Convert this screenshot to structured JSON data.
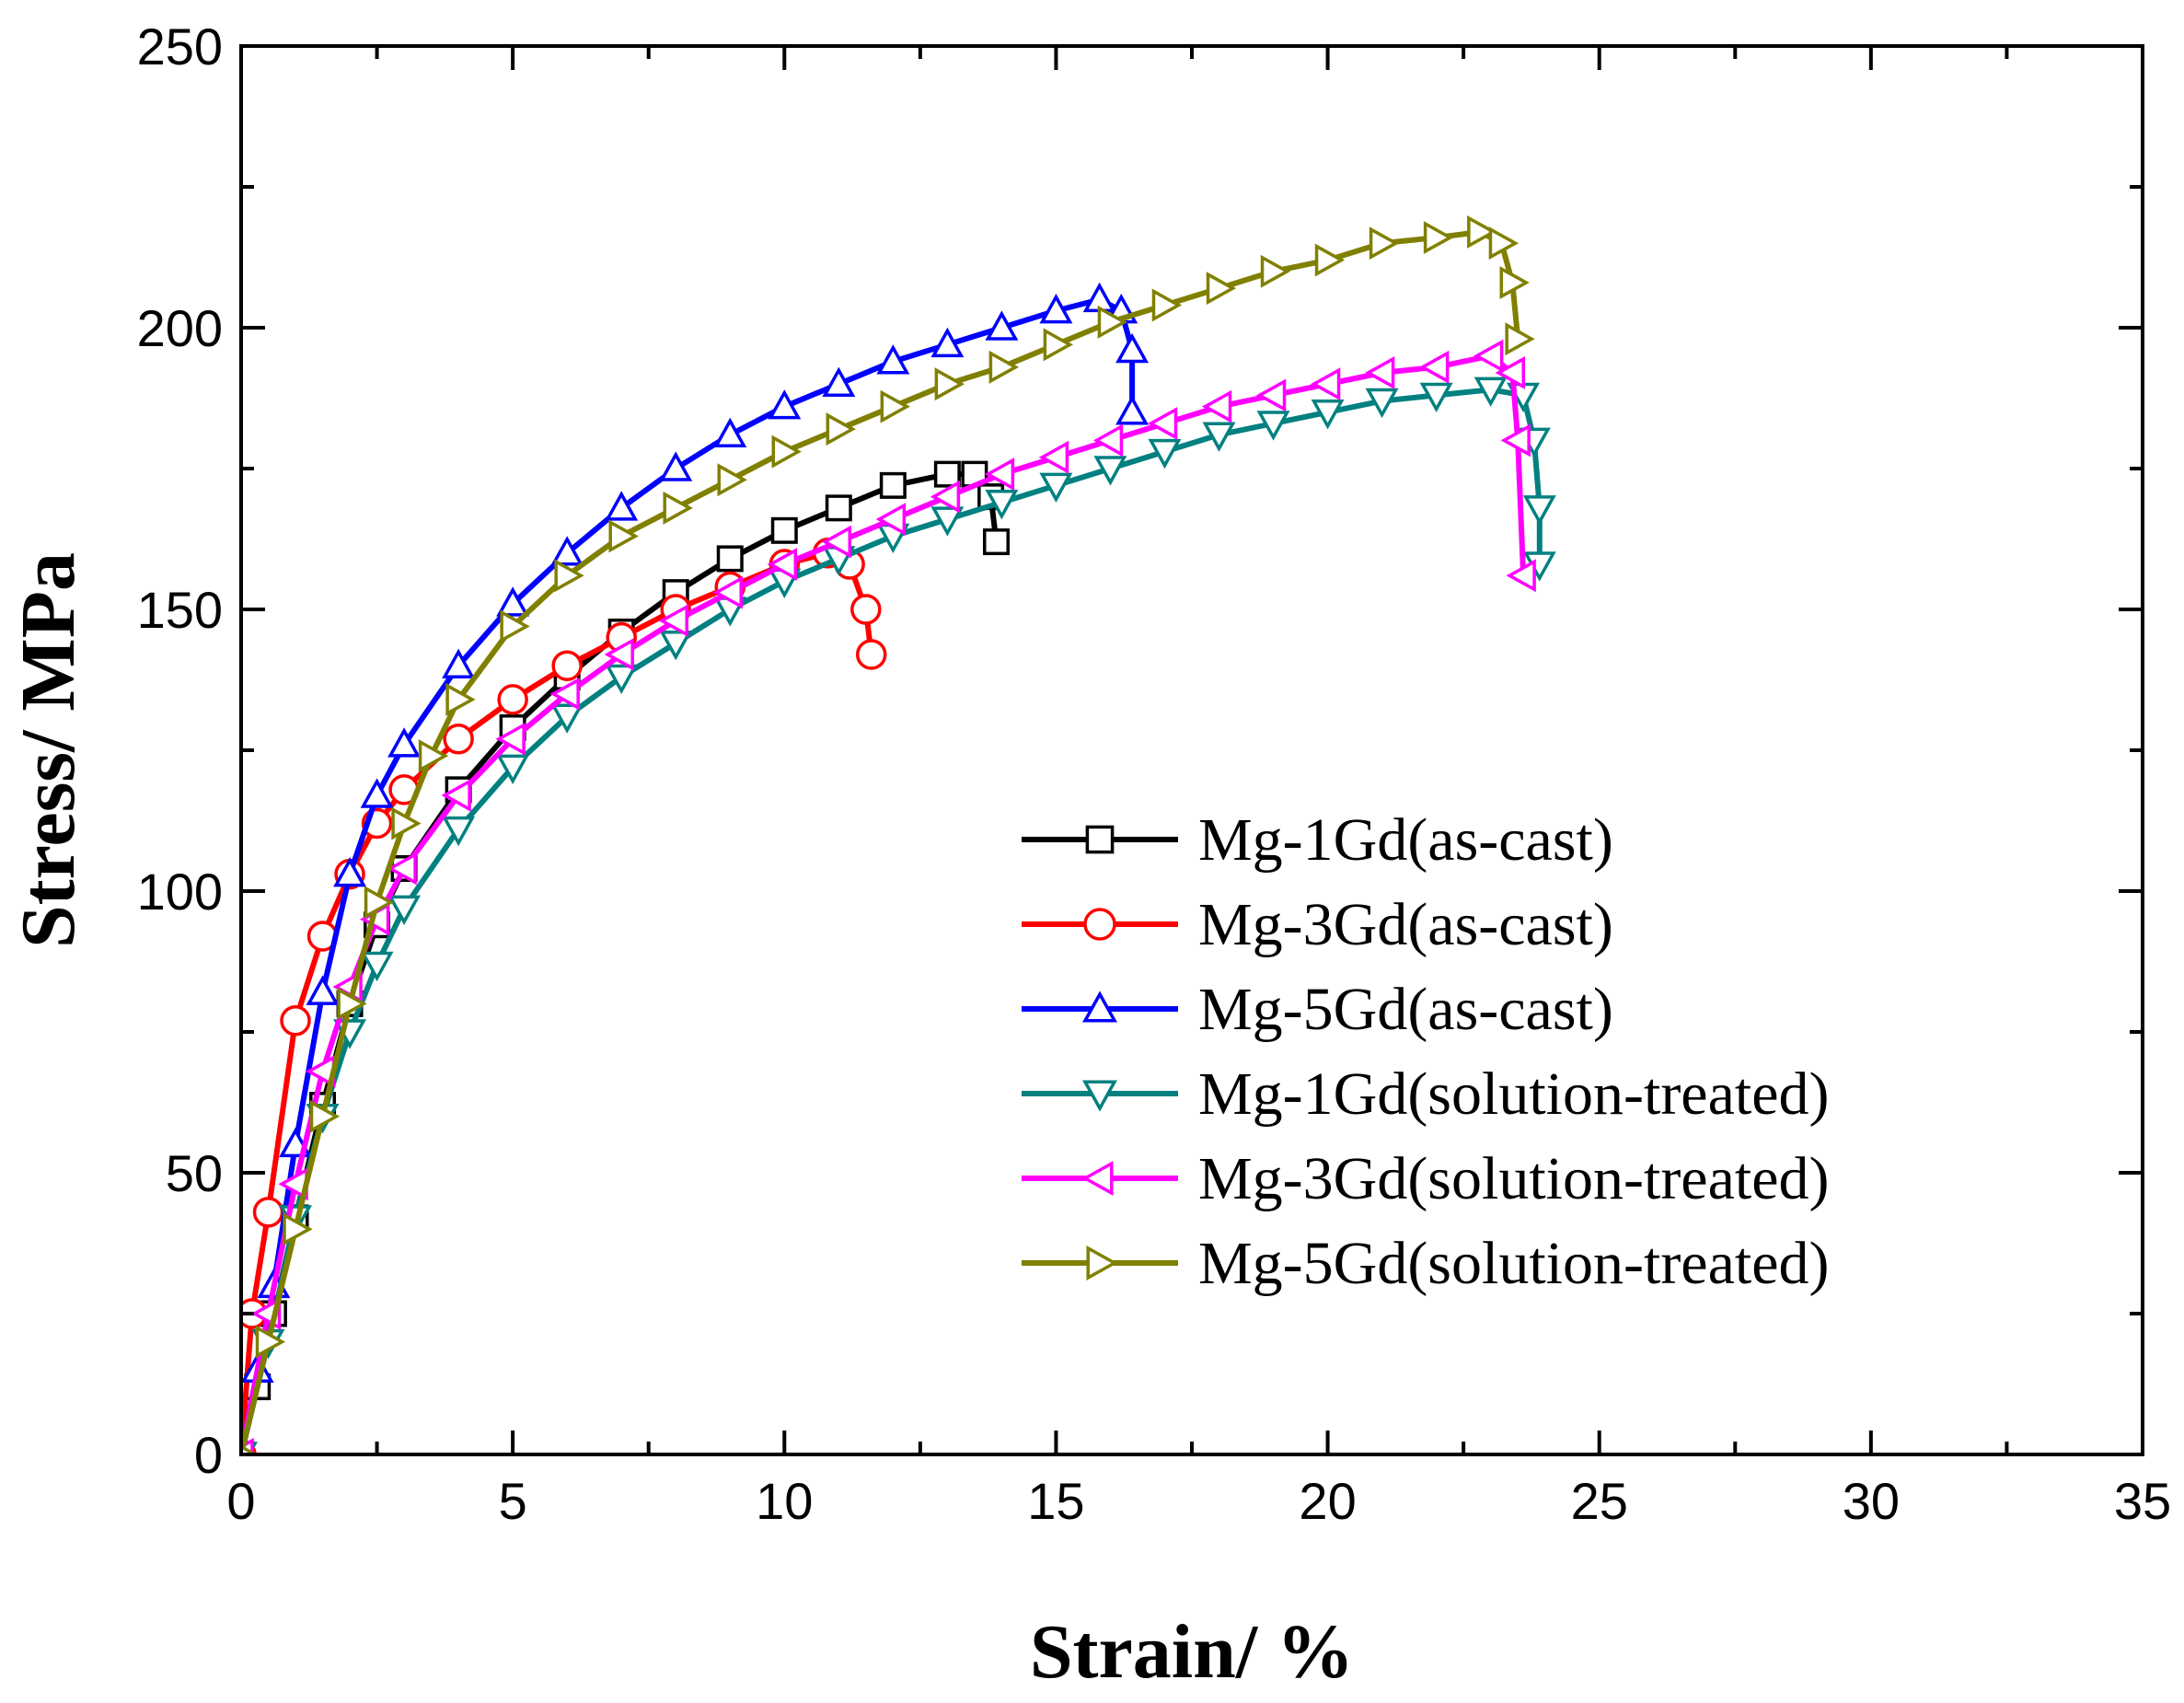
{
  "chart_data": {
    "type": "line",
    "title": "",
    "xlabel": "Strain/ %",
    "ylabel": "Stress/ MPa",
    "xlim": [
      0,
      35
    ],
    "ylim": [
      0,
      250
    ],
    "x_ticks": [
      "0",
      "5",
      "10",
      "15",
      "20",
      "25",
      "30",
      "35"
    ],
    "y_ticks": [
      "0",
      "50",
      "100",
      "150",
      "200",
      "250"
    ],
    "legend_position": "center-right",
    "series": [
      {
        "name": "Mg-1Gd(as-cast)",
        "color": "#000000",
        "marker": "square",
        "x": [
          0,
          0.3,
          0.6,
          1.0,
          1.5,
          2.0,
          2.5,
          3.0,
          4.0,
          5.0,
          6.0,
          7.0,
          8.0,
          9.0,
          10.0,
          11.0,
          12.0,
          13.0,
          13.5,
          13.8,
          13.9
        ],
        "y": [
          0,
          12,
          25,
          42,
          62,
          80,
          94,
          104,
          118,
          129,
          138,
          146,
          153,
          159,
          164,
          168,
          172,
          174,
          174,
          170,
          162
        ]
      },
      {
        "name": "Mg-3Gd(as-cast)",
        "color": "#ff0000",
        "marker": "circle",
        "x": [
          0,
          0.2,
          0.5,
          1.0,
          1.5,
          2.0,
          2.5,
          3.0,
          4.0,
          5.0,
          6.0,
          7.0,
          8.0,
          9.0,
          10.0,
          10.8,
          11.2,
          11.5,
          11.6
        ],
        "y": [
          0,
          25,
          43,
          77,
          92,
          103,
          112,
          118,
          127,
          134,
          140,
          145,
          150,
          154,
          158,
          160,
          158,
          150,
          142
        ]
      },
      {
        "name": "Mg-5Gd(as-cast)",
        "color": "#0000ff",
        "marker": "triangle-up",
        "x": [
          0,
          0.3,
          0.6,
          1.0,
          1.5,
          2.0,
          2.5,
          3.0,
          4.0,
          5.0,
          6.0,
          7.0,
          8.0,
          9.0,
          10.0,
          11.0,
          12.0,
          13.0,
          14.0,
          15.0,
          15.8,
          16.2,
          16.4,
          16.4
        ],
        "y": [
          0,
          15,
          30,
          55,
          82,
          103,
          117,
          126,
          140,
          151,
          160,
          168,
          175,
          181,
          186,
          190,
          194,
          197,
          200,
          203,
          205,
          203,
          196,
          185
        ]
      },
      {
        "name": "Mg-1Gd(solution-treated)",
        "color": "#008080",
        "marker": "triangle-down",
        "x": [
          0,
          0.5,
          1.0,
          1.5,
          2.0,
          2.5,
          3.0,
          4.0,
          5.0,
          6.0,
          7.0,
          8.0,
          9.0,
          10.0,
          11.0,
          12.0,
          13.0,
          14.0,
          15.0,
          16.0,
          17.0,
          18.0,
          19.0,
          20.0,
          21.0,
          22.0,
          23.0,
          23.6,
          23.8,
          23.9,
          23.9
        ],
        "y": [
          0,
          20,
          42,
          60,
          75,
          87,
          97,
          111,
          122,
          131,
          138,
          144,
          150,
          155,
          159,
          163,
          166,
          169,
          172,
          175,
          178,
          181,
          183,
          185,
          187,
          188,
          189,
          188,
          180,
          168,
          158
        ]
      },
      {
        "name": "Mg-3Gd(solution-treated)",
        "color": "#ff00ff",
        "marker": "triangle-left",
        "x": [
          0,
          0.5,
          1.0,
          1.5,
          2.0,
          2.5,
          3.0,
          4.0,
          5.0,
          6.0,
          7.0,
          8.0,
          9.0,
          10.0,
          11.0,
          12.0,
          13.0,
          14.0,
          15.0,
          16.0,
          17.0,
          18.0,
          19.0,
          20.0,
          21.0,
          22.0,
          23.0,
          23.4,
          23.5,
          23.6
        ],
        "y": [
          0,
          25,
          48,
          68,
          83,
          95,
          104,
          117,
          127,
          135,
          142,
          148,
          153,
          158,
          162,
          166,
          170,
          174,
          177,
          180,
          183,
          186,
          188,
          190,
          192,
          193,
          195,
          192,
          180,
          156
        ]
      },
      {
        "name": "Mg-5Gd(solution-treated)",
        "color": "#808000",
        "marker": "triangle-right",
        "x": [
          0,
          0.5,
          1.0,
          1.5,
          2.0,
          2.5,
          3.0,
          3.5,
          4.0,
          5.0,
          6.0,
          7.0,
          8.0,
          9.0,
          10.0,
          11.0,
          12.0,
          13.0,
          14.0,
          15.0,
          16.0,
          17.0,
          18.0,
          19.0,
          20.0,
          21.0,
          22.0,
          22.8,
          23.2,
          23.4,
          23.5
        ],
        "y": [
          0,
          20,
          40,
          60,
          80,
          98,
          112,
          124,
          134,
          147,
          156,
          163,
          168,
          173,
          178,
          182,
          186,
          190,
          193,
          197,
          201,
          204,
          207,
          210,
          212,
          215,
          216,
          217,
          215,
          208,
          198
        ]
      }
    ]
  }
}
